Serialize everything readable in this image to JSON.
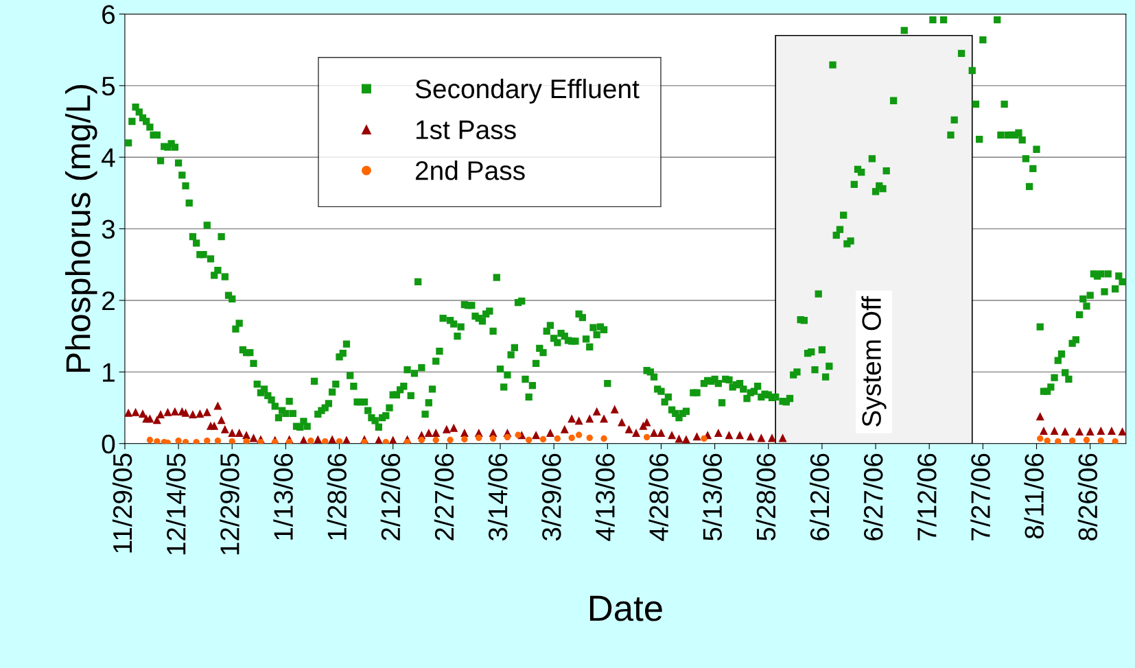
{
  "chart_data": {
    "type": "scatter",
    "xlabel": "Date",
    "ylabel": "Phosphorus (mg/L)",
    "xlim": [
      "2005-11-29",
      "2006-09-05"
    ],
    "ylim": [
      0,
      6
    ],
    "yticks": [
      0,
      1,
      2,
      3,
      4,
      5,
      6
    ],
    "xticks": [
      {
        "value": "2005-11-29",
        "label": "11/29/05"
      },
      {
        "value": "2005-12-14",
        "label": "12/14/05"
      },
      {
        "value": "2005-12-29",
        "label": "12/29/05"
      },
      {
        "value": "2006-01-13",
        "label": "1/13/06"
      },
      {
        "value": "2006-01-28",
        "label": "1/28/06"
      },
      {
        "value": "2006-02-12",
        "label": "2/12/06"
      },
      {
        "value": "2006-02-27",
        "label": "2/27/06"
      },
      {
        "value": "2006-03-14",
        "label": "3/14/06"
      },
      {
        "value": "2006-03-29",
        "label": "3/29/06"
      },
      {
        "value": "2006-04-13",
        "label": "4/13/06"
      },
      {
        "value": "2006-04-28",
        "label": "4/28/06"
      },
      {
        "value": "2006-05-13",
        "label": "5/13/06"
      },
      {
        "value": "2006-05-28",
        "label": "5/28/06"
      },
      {
        "value": "2006-06-12",
        "label": "6/12/06"
      },
      {
        "value": "2006-06-27",
        "label": "6/27/06"
      },
      {
        "value": "2006-07-12",
        "label": "7/12/06"
      },
      {
        "value": "2006-07-27",
        "label": "7/27/06"
      },
      {
        "value": "2006-08-11",
        "label": "8/11/06"
      },
      {
        "value": "2006-08-26",
        "label": "8/26/06"
      }
    ],
    "grid": "y",
    "legend": "top left",
    "bands": [
      {
        "axis": "x",
        "from": "2006-05-30",
        "to": "2006-07-24",
        "label": "System Off",
        "color": "#f2f2f2"
      }
    ],
    "series": [
      {
        "name": "Secondary Effluent",
        "color": "#119911",
        "marker": "square",
        "x": [
          "2005-11-30",
          "2005-12-01",
          "2005-12-02",
          "2005-12-03",
          "2005-12-04",
          "2005-12-05",
          "2005-12-06",
          "2005-12-07",
          "2005-12-08",
          "2005-12-09",
          "2005-12-10",
          "2005-12-11",
          "2005-12-12",
          "2005-12-13",
          "2005-12-14",
          "2005-12-15",
          "2005-12-16",
          "2005-12-17",
          "2005-12-18",
          "2005-12-19",
          "2005-12-20",
          "2005-12-21",
          "2005-12-22",
          "2005-12-23",
          "2005-12-24",
          "2005-12-25",
          "2005-12-26",
          "2005-12-27",
          "2005-12-28",
          "2005-12-29",
          "2005-12-30",
          "2005-12-31",
          "2006-01-01",
          "2006-01-02",
          "2006-01-03",
          "2006-01-04",
          "2006-01-05",
          "2006-01-06",
          "2006-01-07",
          "2006-01-08",
          "2006-01-09",
          "2006-01-10",
          "2006-01-11",
          "2006-01-12",
          "2006-01-13",
          "2006-01-14",
          "2006-01-15",
          "2006-01-16",
          "2006-01-17",
          "2006-01-18",
          "2006-01-19",
          "2006-01-21",
          "2006-01-22",
          "2006-01-23",
          "2006-01-24",
          "2006-01-25",
          "2006-01-26",
          "2006-01-27",
          "2006-01-28",
          "2006-01-29",
          "2006-01-30",
          "2006-01-31",
          "2006-02-01",
          "2006-02-02",
          "2006-02-03",
          "2006-02-04",
          "2006-02-05",
          "2006-02-06",
          "2006-02-07",
          "2006-02-08",
          "2006-02-09",
          "2006-02-10",
          "2006-02-11",
          "2006-02-12",
          "2006-02-13",
          "2006-02-14",
          "2006-02-15",
          "2006-02-16",
          "2006-02-17",
          "2006-02-18",
          "2006-02-19",
          "2006-02-20",
          "2006-02-21",
          "2006-02-22",
          "2006-02-23",
          "2006-02-24",
          "2006-02-25",
          "2006-02-26",
          "2006-02-28",
          "2006-03-01",
          "2006-03-02",
          "2006-03-03",
          "2006-03-04",
          "2006-03-05",
          "2006-03-06",
          "2006-03-07",
          "2006-03-08",
          "2006-03-09",
          "2006-03-10",
          "2006-03-11",
          "2006-03-12",
          "2006-03-13",
          "2006-03-14",
          "2006-03-15",
          "2006-03-16",
          "2006-03-17",
          "2006-03-18",
          "2006-03-19",
          "2006-03-20",
          "2006-03-21",
          "2006-03-22",
          "2006-03-23",
          "2006-03-24",
          "2006-03-25",
          "2006-03-26",
          "2006-03-27",
          "2006-03-28",
          "2006-03-29",
          "2006-03-30",
          "2006-03-31",
          "2006-04-01",
          "2006-04-02",
          "2006-04-03",
          "2006-04-04",
          "2006-04-05",
          "2006-04-06",
          "2006-04-07",
          "2006-04-08",
          "2006-04-09",
          "2006-04-10",
          "2006-04-11",
          "2006-04-12",
          "2006-04-13",
          "2006-04-24",
          "2006-04-25",
          "2006-04-26",
          "2006-04-27",
          "2006-04-28",
          "2006-04-29",
          "2006-04-30",
          "2006-05-01",
          "2006-05-02",
          "2006-05-03",
          "2006-05-04",
          "2006-05-05",
          "2006-05-07",
          "2006-05-08",
          "2006-05-10",
          "2006-05-11",
          "2006-05-12",
          "2006-05-13",
          "2006-05-14",
          "2006-05-15",
          "2006-05-16",
          "2006-05-17",
          "2006-05-18",
          "2006-05-19",
          "2006-05-20",
          "2006-05-21",
          "2006-05-22",
          "2006-05-23",
          "2006-05-24",
          "2006-05-25",
          "2006-05-26",
          "2006-05-27",
          "2006-05-28",
          "2006-05-29",
          "2006-05-30",
          "2006-06-01",
          "2006-06-02",
          "2006-06-03",
          "2006-06-04",
          "2006-06-05",
          "2006-06-06",
          "2006-06-07",
          "2006-06-08",
          "2006-06-09",
          "2006-06-10",
          "2006-06-11",
          "2006-06-12",
          "2006-06-13",
          "2006-06-14",
          "2006-06-15",
          "2006-06-16",
          "2006-06-17",
          "2006-06-18",
          "2006-06-19",
          "2006-06-20",
          "2006-06-21",
          "2006-06-22",
          "2006-06-23",
          "2006-06-26",
          "2006-06-27",
          "2006-06-28",
          "2006-06-29",
          "2006-06-30",
          "2006-07-02",
          "2006-07-05",
          "2006-07-13",
          "2006-07-16",
          "2006-07-18",
          "2006-07-19",
          "2006-07-21",
          "2006-07-24",
          "2006-07-25",
          "2006-07-26",
          "2006-07-27",
          "2006-07-31",
          "2006-08-01",
          "2006-08-02",
          "2006-08-03",
          "2006-08-04",
          "2006-08-05",
          "2006-08-06",
          "2006-08-07",
          "2006-08-08",
          "2006-08-09",
          "2006-08-10",
          "2006-08-11",
          "2006-08-12",
          "2006-08-13",
          "2006-08-14",
          "2006-08-15",
          "2006-08-16",
          "2006-08-17",
          "2006-08-18",
          "2006-08-19",
          "2006-08-20",
          "2006-08-21",
          "2006-08-22",
          "2006-08-23",
          "2006-08-24",
          "2006-08-25",
          "2006-08-26",
          "2006-08-27",
          "2006-08-28",
          "2006-08-29",
          "2006-08-30",
          "2006-08-31",
          "2006-09-02",
          "2006-09-03",
          "2006-09-04"
        ],
        "values": [
          4.2,
          4.5,
          4.7,
          4.63,
          4.55,
          4.5,
          4.42,
          4.31,
          4.31,
          3.95,
          4.15,
          4.14,
          4.19,
          4.14,
          3.92,
          3.75,
          3.6,
          3.36,
          2.89,
          2.8,
          2.64,
          2.64,
          3.05,
          2.58,
          2.35,
          2.42,
          2.89,
          2.33,
          2.07,
          2.02,
          1.6,
          1.68,
          1.31,
          1.27,
          1.27,
          1.12,
          0.83,
          0.71,
          0.76,
          0.67,
          0.61,
          0.52,
          0.36,
          0.46,
          0.42,
          0.59,
          0.42,
          0.24,
          0.23,
          0.31,
          0.24,
          0.87,
          0.41,
          0.46,
          0.5,
          0.56,
          0.72,
          0.83,
          1.21,
          1.26,
          1.39,
          0.95,
          0.8,
          0.58,
          0.58,
          0.58,
          0.46,
          0.36,
          0.32,
          0.23,
          0.36,
          0.39,
          0.5,
          0.68,
          0.68,
          0.75,
          0.8,
          1.03,
          0.67,
          0.98,
          2.26,
          1.06,
          0.41,
          0.57,
          0.76,
          1.15,
          1.29,
          1.75,
          1.72,
          1.67,
          1.5,
          1.63,
          1.94,
          1.93,
          1.93,
          1.78,
          1.75,
          1.71,
          1.81,
          1.85,
          1.57,
          2.32,
          1.04,
          0.79,
          0.96,
          1.24,
          1.34,
          1.97,
          1.99,
          0.9,
          0.65,
          0.81,
          1.12,
          1.33,
          1.27,
          1.57,
          1.65,
          1.47,
          1.41,
          1.54,
          1.5,
          1.44,
          1.43,
          1.43,
          1.81,
          1.76,
          1.46,
          1.35,
          1.62,
          1.52,
          1.63,
          1.59,
          0.84,
          1.02,
          1.0,
          0.93,
          0.76,
          0.73,
          0.58,
          0.65,
          0.47,
          0.42,
          0.36,
          0.42,
          0.45,
          0.71,
          0.71,
          0.84,
          0.88,
          0.87,
          0.9,
          0.84,
          0.57,
          0.9,
          0.89,
          0.79,
          0.82,
          0.84,
          0.76,
          0.63,
          0.71,
          0.73,
          0.8,
          0.65,
          0.69,
          0.68,
          0.64,
          0.65,
          0.59,
          0.58,
          0.63,
          0.96,
          1.0,
          1.73,
          1.72,
          1.26,
          1.28,
          1.03,
          2.09,
          1.31,
          0.93,
          1.08,
          5.29,
          2.91,
          2.99,
          3.19,
          2.79,
          2.83,
          3.62,
          3.83,
          3.79,
          3.98,
          3.52,
          3.6,
          3.56,
          3.81,
          4.79,
          5.77,
          5.92,
          5.92,
          4.31,
          4.52,
          5.45,
          5.21,
          4.74,
          4.25,
          5.64,
          5.92,
          4.31,
          4.74,
          4.31,
          4.31,
          4.31,
          4.34,
          4.24,
          3.98,
          3.59,
          3.84,
          4.11,
          1.63,
          0.73,
          0.73,
          0.79,
          0.92,
          1.16,
          1.25,
          0.99,
          0.9,
          1.4,
          1.45,
          1.8,
          2.02,
          1.92,
          2.07,
          2.37,
          2.34,
          2.37,
          2.12,
          2.37,
          2.16,
          2.34,
          2.26
        ]
      },
      {
        "name": "1st Pass",
        "color": "#990000",
        "marker": "triangle",
        "x": [
          "2005-11-30",
          "2005-12-02",
          "2005-12-04",
          "2005-12-05",
          "2005-12-06",
          "2005-12-08",
          "2005-12-09",
          "2005-12-11",
          "2005-12-13",
          "2005-12-15",
          "2005-12-16",
          "2005-12-18",
          "2005-12-20",
          "2005-12-22",
          "2005-12-23",
          "2005-12-24",
          "2005-12-25",
          "2005-12-26",
          "2005-12-27",
          "2005-12-29",
          "2005-12-31",
          "2006-01-02",
          "2006-01-04",
          "2006-01-06",
          "2006-01-10",
          "2006-01-14",
          "2006-01-18",
          "2006-01-22",
          "2006-01-26",
          "2006-01-30",
          "2006-02-04",
          "2006-02-08",
          "2006-02-12",
          "2006-02-16",
          "2006-02-20",
          "2006-02-22",
          "2006-02-24",
          "2006-02-27",
          "2006-03-01",
          "2006-03-04",
          "2006-03-08",
          "2006-03-12",
          "2006-03-16",
          "2006-03-20",
          "2006-03-24",
          "2006-03-28",
          "2006-04-01",
          "2006-04-03",
          "2006-04-05",
          "2006-04-08",
          "2006-04-10",
          "2006-04-12",
          "2006-04-15",
          "2006-04-17",
          "2006-04-19",
          "2006-04-21",
          "2006-04-23",
          "2006-04-24",
          "2006-04-26",
          "2006-04-28",
          "2006-05-01",
          "2006-05-03",
          "2006-05-05",
          "2006-05-08",
          "2006-05-11",
          "2006-05-14",
          "2006-05-17",
          "2006-05-20",
          "2006-05-23",
          "2006-05-26",
          "2006-05-29",
          "2006-06-01",
          "2006-08-12",
          "2006-08-13",
          "2006-08-16",
          "2006-08-19",
          "2006-08-23",
          "2006-08-26",
          "2006-08-29",
          "2006-09-01",
          "2006-09-04"
        ],
        "values": [
          0.43,
          0.44,
          0.42,
          0.35,
          0.35,
          0.33,
          0.41,
          0.44,
          0.45,
          0.45,
          0.43,
          0.41,
          0.42,
          0.44,
          0.25,
          0.25,
          0.53,
          0.33,
          0.2,
          0.15,
          0.15,
          0.12,
          0.08,
          0.06,
          0.05,
          0.06,
          0.05,
          0.06,
          0.06,
          0.05,
          0.06,
          0.05,
          0.05,
          0.06,
          0.12,
          0.15,
          0.15,
          0.2,
          0.22,
          0.15,
          0.15,
          0.15,
          0.15,
          0.12,
          0.12,
          0.15,
          0.2,
          0.35,
          0.32,
          0.35,
          0.45,
          0.35,
          0.48,
          0.3,
          0.2,
          0.15,
          0.25,
          0.3,
          0.15,
          0.15,
          0.12,
          0.07,
          0.06,
          0.1,
          0.12,
          0.15,
          0.12,
          0.12,
          0.1,
          0.08,
          0.08,
          0.08,
          0.38,
          0.18,
          0.18,
          0.17,
          0.17,
          0.17,
          0.18,
          0.18,
          0.17
        ]
      },
      {
        "name": "2nd Pass",
        "color": "#ff6600",
        "marker": "circle",
        "x": [
          "2005-12-06",
          "2005-12-08",
          "2005-12-10",
          "2005-12-11",
          "2005-12-14",
          "2005-12-16",
          "2005-12-19",
          "2005-12-22",
          "2005-12-25",
          "2005-12-29",
          "2006-01-02",
          "2006-01-06",
          "2006-01-10",
          "2006-01-14",
          "2006-01-20",
          "2006-01-24",
          "2006-01-28",
          "2006-02-04",
          "2006-02-10",
          "2006-02-16",
          "2006-02-20",
          "2006-02-24",
          "2006-02-28",
          "2006-03-04",
          "2006-03-08",
          "2006-03-12",
          "2006-03-16",
          "2006-03-19",
          "2006-03-22",
          "2006-03-26",
          "2006-03-30",
          "2006-04-03",
          "2006-04-05",
          "2006-04-08",
          "2006-04-12",
          "2006-04-24",
          "2006-05-10",
          "2006-08-12",
          "2006-08-14",
          "2006-08-17",
          "2006-08-21",
          "2006-08-25",
          "2006-08-29",
          "2006-09-02"
        ],
        "values": [
          0.05,
          0.03,
          0.02,
          0.01,
          0.04,
          0.02,
          0.02,
          0.04,
          0.04,
          0.03,
          0.03,
          0.02,
          0.02,
          0.02,
          0.04,
          0.03,
          0.03,
          0.02,
          0.02,
          0.02,
          0.05,
          0.05,
          0.05,
          0.06,
          0.08,
          0.07,
          0.09,
          0.12,
          0.05,
          0.06,
          0.07,
          0.08,
          0.12,
          0.08,
          0.07,
          0.09,
          0.07,
          0.07,
          0.04,
          0.03,
          0.04,
          0.05,
          0.04,
          0.03
        ]
      }
    ]
  }
}
